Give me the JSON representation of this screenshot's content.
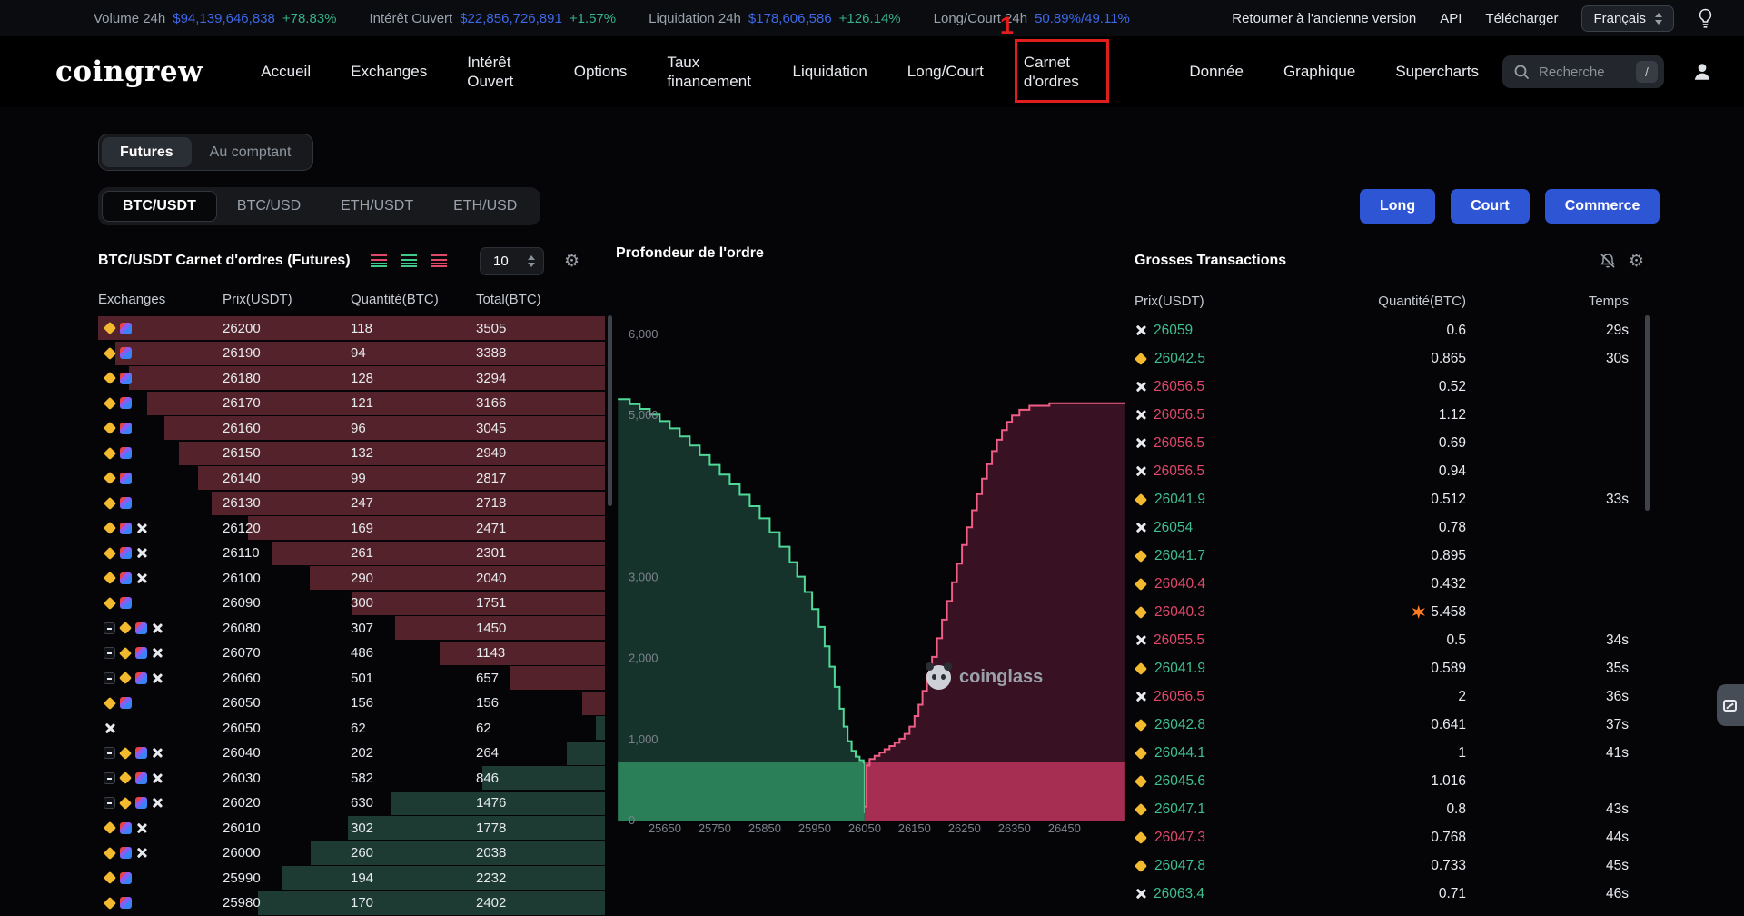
{
  "colors": {
    "accent_blue": "#3e68e8",
    "positive_green": "#35b286",
    "ask_red": "#e0486b",
    "bid_green": "#41c98c",
    "ask_bar": "#54222a",
    "bid_bar": "#1d3b32",
    "button_blue": "#2e55d4",
    "annotation_red": "#e11d1d",
    "background": "#050507"
  },
  "topbar": {
    "stats": [
      {
        "label": "Volume 24h",
        "value": "$94,139,646,838",
        "change": "+78.83%"
      },
      {
        "label": "Intérêt Ouvert",
        "value": "$22,856,726,891",
        "change": "+1.57%"
      },
      {
        "label": "Liquidation 24h",
        "value": "$178,606,586",
        "change": "+126.14%"
      },
      {
        "label": "Long/Court 24h",
        "value": "50.89%/49.11%",
        "change": ""
      }
    ],
    "links": [
      "Retourner à l'ancienne version",
      "API",
      "Télécharger"
    ],
    "language": "Français"
  },
  "nav": {
    "logo": "coingrew",
    "items": [
      {
        "label": "Accueil"
      },
      {
        "label": "Exchanges"
      },
      {
        "label": "Intérêt Ouvert",
        "wrap": true
      },
      {
        "label": "Options"
      },
      {
        "label": "Taux financement",
        "wrap": true
      },
      {
        "label": "Liquidation"
      },
      {
        "label": "Long/Court"
      },
      {
        "label": "Carnet d'ordres",
        "wrap": true,
        "annotated": true
      },
      {
        "label": "Donnée",
        "gap": true
      },
      {
        "label": "Graphique"
      },
      {
        "label": "Supercharts"
      }
    ],
    "search_placeholder": "Recherche",
    "search_shortcut": "/"
  },
  "annotation": {
    "number": "1"
  },
  "tabs": {
    "market": [
      {
        "label": "Futures",
        "active": true
      },
      {
        "label": "Au comptant",
        "active": false
      }
    ],
    "pairs": [
      {
        "label": "BTC/USDT",
        "active": true
      },
      {
        "label": "BTC/USD",
        "active": false
      },
      {
        "label": "ETH/USDT",
        "active": false
      },
      {
        "label": "ETH/USD",
        "active": false
      }
    ]
  },
  "actions": {
    "long": "Long",
    "short": "Court",
    "trade": "Commerce"
  },
  "orderbook": {
    "title": "BTC/USDT Carnet d'ordres (Futures)",
    "depth_input": "10",
    "headers": [
      "Exchanges",
      "Prix(USDT)",
      "Quantité(BTC)",
      "Total(BTC)"
    ],
    "asks": [
      {
        "price": "26200",
        "qty": "118",
        "total": "3505",
        "icons": [
          "binance",
          "striped"
        ]
      },
      {
        "price": "26190",
        "qty": "94",
        "total": "3388",
        "icons": [
          "binance",
          "striped"
        ]
      },
      {
        "price": "26180",
        "qty": "128",
        "total": "3294",
        "icons": [
          "binance",
          "striped"
        ]
      },
      {
        "price": "26170",
        "qty": "121",
        "total": "3166",
        "icons": [
          "binance",
          "striped"
        ]
      },
      {
        "price": "26160",
        "qty": "96",
        "total": "3045",
        "icons": [
          "binance",
          "striped"
        ]
      },
      {
        "price": "26150",
        "qty": "132",
        "total": "2949",
        "icons": [
          "binance",
          "striped"
        ]
      },
      {
        "price": "26140",
        "qty": "99",
        "total": "2817",
        "icons": [
          "binance",
          "striped"
        ]
      },
      {
        "price": "26130",
        "qty": "247",
        "total": "2718",
        "icons": [
          "binance",
          "striped"
        ]
      },
      {
        "price": "26120",
        "qty": "169",
        "total": "2471",
        "icons": [
          "binance",
          "striped",
          "okx"
        ]
      },
      {
        "price": "26110",
        "qty": "261",
        "total": "2301",
        "icons": [
          "binance",
          "striped",
          "okx"
        ]
      },
      {
        "price": "26100",
        "qty": "290",
        "total": "2040",
        "icons": [
          "binance",
          "striped",
          "okx"
        ]
      },
      {
        "price": "26090",
        "qty": "300",
        "total": "1751",
        "icons": [
          "binance",
          "striped"
        ]
      },
      {
        "price": "26080",
        "qty": "307",
        "total": "1450",
        "icons": [
          "bybit",
          "binance",
          "striped",
          "okx"
        ]
      },
      {
        "price": "26070",
        "qty": "486",
        "total": "1143",
        "icons": [
          "bybit",
          "binance",
          "striped",
          "okx"
        ]
      },
      {
        "price": "26060",
        "qty": "501",
        "total": "657",
        "icons": [
          "bybit",
          "binance",
          "striped",
          "okx"
        ]
      },
      {
        "price": "26050",
        "qty": "156",
        "total": "156",
        "icons": [
          "binance",
          "striped"
        ]
      }
    ],
    "bids": [
      {
        "price": "26050",
        "qty": "62",
        "total": "62",
        "icons": [
          "okx"
        ]
      },
      {
        "price": "26040",
        "qty": "202",
        "total": "264",
        "icons": [
          "bybit",
          "binance",
          "striped",
          "okx"
        ]
      },
      {
        "price": "26030",
        "qty": "582",
        "total": "846",
        "icons": [
          "bybit",
          "binance",
          "striped",
          "okx"
        ]
      },
      {
        "price": "26020",
        "qty": "630",
        "total": "1476",
        "icons": [
          "bybit",
          "binance",
          "striped",
          "okx"
        ]
      },
      {
        "price": "26010",
        "qty": "302",
        "total": "1778",
        "icons": [
          "binance",
          "striped",
          "okx"
        ]
      },
      {
        "price": "26000",
        "qty": "260",
        "total": "2038",
        "icons": [
          "binance",
          "striped",
          "okx"
        ]
      },
      {
        "price": "25990",
        "qty": "194",
        "total": "2232",
        "icons": [
          "binance",
          "striped"
        ]
      },
      {
        "price": "25980",
        "qty": "170",
        "total": "2402",
        "icons": [
          "binance",
          "striped"
        ]
      }
    ]
  },
  "chart_data": {
    "type": "area",
    "title": "Profondeur de l'ordre",
    "watermark": "coinglass",
    "xlim": [
      25552,
      26574
    ],
    "ylim": [
      0,
      6200
    ],
    "near_band_height": 720,
    "x_ticks": [
      {
        "label": "25650",
        "value": 25650
      },
      {
        "label": "25750",
        "value": 25750
      },
      {
        "label": "25850",
        "value": 25850
      },
      {
        "label": "25950",
        "value": 25950
      },
      {
        "label": "26050",
        "value": 26050
      },
      {
        "label": "26150",
        "value": 26150
      },
      {
        "label": "26250",
        "value": 26250
      },
      {
        "label": "26350",
        "value": 26350
      },
      {
        "label": "26450",
        "value": 26450
      }
    ],
    "y_ticks": [
      {
        "label": "6,000",
        "value": 6000
      },
      {
        "label": "5,000",
        "value": 5000
      },
      {
        "label": "3,000",
        "value": 3000
      },
      {
        "label": "2,000",
        "value": 2000
      },
      {
        "label": "1,000",
        "value": 1000
      },
      {
        "label": "0",
        "value": 0
      }
    ],
    "series": [
      {
        "name": "bids",
        "line": "#4ed998",
        "fill": "#15332a",
        "band": "#2a7f58",
        "points": [
          [
            25556,
            5200
          ],
          [
            25580,
            5140
          ],
          [
            25600,
            5080
          ],
          [
            25620,
            5010
          ],
          [
            25640,
            4930
          ],
          [
            25660,
            4840
          ],
          [
            25680,
            4740
          ],
          [
            25700,
            4630
          ],
          [
            25720,
            4510
          ],
          [
            25740,
            4390
          ],
          [
            25760,
            4270
          ],
          [
            25780,
            4150
          ],
          [
            25800,
            4020
          ],
          [
            25820,
            3880
          ],
          [
            25840,
            3730
          ],
          [
            25860,
            3560
          ],
          [
            25880,
            3380
          ],
          [
            25900,
            3190
          ],
          [
            25915,
            3010
          ],
          [
            25930,
            2820
          ],
          [
            25945,
            2610
          ],
          [
            25958,
            2390
          ],
          [
            25970,
            2150
          ],
          [
            25980,
            1900
          ],
          [
            25990,
            1650
          ],
          [
            26000,
            1380
          ],
          [
            26008,
            1160
          ],
          [
            26016,
            980
          ],
          [
            26024,
            860
          ],
          [
            26032,
            790
          ],
          [
            26040,
            745
          ],
          [
            26048,
            715
          ],
          [
            26050,
            90
          ]
        ]
      },
      {
        "name": "asks",
        "line": "#ef5d84",
        "fill": "#381223",
        "band": "#a62e52",
        "points": [
          [
            26050,
            170
          ],
          [
            26054,
            680
          ],
          [
            26060,
            760
          ],
          [
            26070,
            800
          ],
          [
            26080,
            840
          ],
          [
            26090,
            880
          ],
          [
            26100,
            920
          ],
          [
            26110,
            960
          ],
          [
            26120,
            1010
          ],
          [
            26130,
            1070
          ],
          [
            26140,
            1160
          ],
          [
            26150,
            1290
          ],
          [
            26158,
            1430
          ],
          [
            26166,
            1600
          ],
          [
            26175,
            1800
          ],
          [
            26185,
            2020
          ],
          [
            26195,
            2250
          ],
          [
            26205,
            2480
          ],
          [
            26215,
            2710
          ],
          [
            26225,
            2940
          ],
          [
            26235,
            3170
          ],
          [
            26245,
            3400
          ],
          [
            26255,
            3620
          ],
          [
            26265,
            3830
          ],
          [
            26275,
            4030
          ],
          [
            26285,
            4220
          ],
          [
            26295,
            4400
          ],
          [
            26305,
            4560
          ],
          [
            26315,
            4700
          ],
          [
            26325,
            4820
          ],
          [
            26335,
            4920
          ],
          [
            26345,
            5000
          ],
          [
            26360,
            5070
          ],
          [
            26380,
            5120
          ],
          [
            26420,
            5150
          ],
          [
            26570,
            5160
          ]
        ]
      }
    ]
  },
  "trades": {
    "title": "Grosses Transactions",
    "headers": [
      "Prix(USDT)",
      "Quantité(BTC)",
      "Temps"
    ],
    "rows": [
      {
        "price": "26059",
        "side": "buy",
        "qty": "0.6",
        "time": "29s",
        "exchange": "okx"
      },
      {
        "price": "26042.5",
        "side": "buy",
        "qty": "0.865",
        "time": "30s",
        "exchange": "binance"
      },
      {
        "price": "26056.5",
        "side": "sell",
        "qty": "0.52",
        "time": "",
        "exchange": "okx"
      },
      {
        "price": "26056.5",
        "side": "sell",
        "qty": "1.12",
        "time": "",
        "exchange": "okx"
      },
      {
        "price": "26056.5",
        "side": "sell",
        "qty": "0.69",
        "time": "",
        "exchange": "okx"
      },
      {
        "price": "26056.5",
        "side": "sell",
        "qty": "0.94",
        "time": "",
        "exchange": "okx"
      },
      {
        "price": "26041.9",
        "side": "buy",
        "qty": "0.512",
        "time": "33s",
        "exchange": "binance"
      },
      {
        "price": "26054",
        "side": "buy",
        "qty": "0.78",
        "time": "",
        "exchange": "okx"
      },
      {
        "price": "26041.7",
        "side": "buy",
        "qty": "0.895",
        "time": "",
        "exchange": "binance"
      },
      {
        "price": "26040.4",
        "side": "sell",
        "qty": "0.432",
        "time": "",
        "exchange": "binance"
      },
      {
        "price": "26040.3",
        "side": "sell",
        "qty": "5.458",
        "time": "",
        "exchange": "binance",
        "flame": true
      },
      {
        "price": "26055.5",
        "side": "sell",
        "qty": "0.5",
        "time": "34s",
        "exchange": "okx"
      },
      {
        "price": "26041.9",
        "side": "buy",
        "qty": "0.589",
        "time": "35s",
        "exchange": "binance"
      },
      {
        "price": "26056.5",
        "side": "sell",
        "qty": "2",
        "time": "36s",
        "exchange": "okx"
      },
      {
        "price": "26042.8",
        "side": "buy",
        "qty": "0.641",
        "time": "37s",
        "exchange": "binance"
      },
      {
        "price": "26044.1",
        "side": "buy",
        "qty": "1",
        "time": "41s",
        "exchange": "binance"
      },
      {
        "price": "26045.6",
        "side": "buy",
        "qty": "1.016",
        "time": "",
        "exchange": "binance"
      },
      {
        "price": "26047.1",
        "side": "buy",
        "qty": "0.8",
        "time": "43s",
        "exchange": "binance"
      },
      {
        "price": "26047.3",
        "side": "sell",
        "qty": "0.768",
        "time": "44s",
        "exchange": "binance"
      },
      {
        "price": "26047.8",
        "side": "buy",
        "qty": "0.733",
        "time": "45s",
        "exchange": "binance"
      },
      {
        "price": "26063.4",
        "side": "buy",
        "qty": "0.71",
        "time": "46s",
        "exchange": "okx"
      }
    ]
  }
}
